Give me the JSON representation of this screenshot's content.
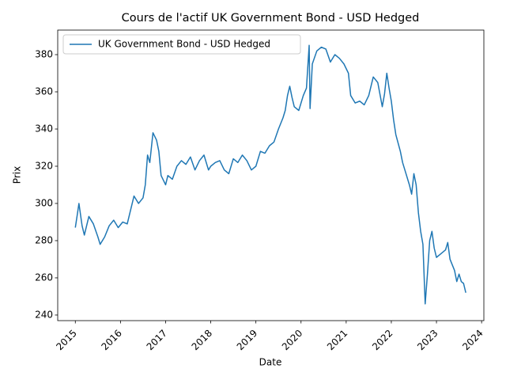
{
  "chart_data": {
    "type": "line",
    "title": "Cours de l'actif UK Government Bond - USD Hedged",
    "x_label": "Date",
    "y_label": "Prix",
    "x": [
      2015.0,
      2015.05,
      2015.08,
      2015.15,
      2015.2,
      2015.3,
      2015.4,
      2015.5,
      2015.55,
      2015.65,
      2015.75,
      2015.85,
      2015.95,
      2016.05,
      2016.15,
      2016.25,
      2016.3,
      2016.4,
      2016.5,
      2016.55,
      2016.6,
      2016.65,
      2016.72,
      2016.8,
      2016.85,
      2016.9,
      2017.0,
      2017.05,
      2017.15,
      2017.25,
      2017.35,
      2017.45,
      2017.55,
      2017.65,
      2017.75,
      2017.85,
      2017.95,
      2018.0,
      2018.1,
      2018.2,
      2018.3,
      2018.4,
      2018.5,
      2018.6,
      2018.7,
      2018.8,
      2018.9,
      2019.0,
      2019.1,
      2019.2,
      2019.3,
      2019.4,
      2019.5,
      2019.6,
      2019.65,
      2019.7,
      2019.75,
      2019.8,
      2019.85,
      2019.95,
      2020.05,
      2020.12,
      2020.18,
      2020.2,
      2020.25,
      2020.35,
      2020.45,
      2020.55,
      2020.65,
      2020.75,
      2020.85,
      2020.95,
      2021.05,
      2021.1,
      2021.2,
      2021.3,
      2021.4,
      2021.5,
      2021.6,
      2021.7,
      2021.8,
      2021.85,
      2021.9,
      2021.95,
      2022.0,
      2022.05,
      2022.1,
      2022.2,
      2022.25,
      2022.3,
      2022.4,
      2022.45,
      2022.5,
      2022.55,
      2022.6,
      2022.65,
      2022.7,
      2022.75,
      2022.8,
      2022.85,
      2022.9,
      2022.95,
      2023.0,
      2023.1,
      2023.2,
      2023.25,
      2023.3,
      2023.4,
      2023.45,
      2023.5,
      2023.55,
      2023.6,
      2023.65
    ],
    "series": [
      {
        "name": "UK Government Bond - USD Hedged",
        "color": "#1f77b4",
        "values": [
          287,
          295,
          300,
          288,
          283,
          293,
          289,
          282,
          278,
          282,
          288,
          291,
          287,
          290,
          289,
          299,
          304,
          300,
          303,
          310,
          326,
          322,
          338,
          334,
          328,
          315,
          310,
          315,
          313,
          320,
          323,
          321,
          325,
          318,
          323,
          326,
          318,
          320,
          322,
          323,
          318,
          316,
          324,
          322,
          326,
          323,
          318,
          320,
          328,
          327,
          331,
          333,
          340,
          346,
          350,
          358,
          363,
          357,
          352,
          350,
          358,
          362,
          385,
          351,
          375,
          382,
          384,
          383,
          376,
          380,
          378,
          375,
          370,
          358,
          354,
          355,
          353,
          358,
          368,
          365,
          352,
          359,
          370,
          362,
          355,
          345,
          337,
          328,
          322,
          318,
          310,
          305,
          316,
          310,
          295,
          285,
          278,
          246,
          262,
          280,
          285,
          276,
          271,
          273,
          275,
          279,
          270,
          264,
          258,
          262,
          258,
          257,
          252
        ]
      }
    ],
    "xlim": [
      2014.61,
      2024.05
    ],
    "ylim": [
      237,
      393.2
    ],
    "xticks": [
      2015,
      2016,
      2017,
      2018,
      2019,
      2020,
      2021,
      2022,
      2023,
      2024
    ],
    "yticks": [
      240,
      260,
      280,
      300,
      320,
      340,
      360,
      380
    ],
    "legend": "upper left"
  }
}
